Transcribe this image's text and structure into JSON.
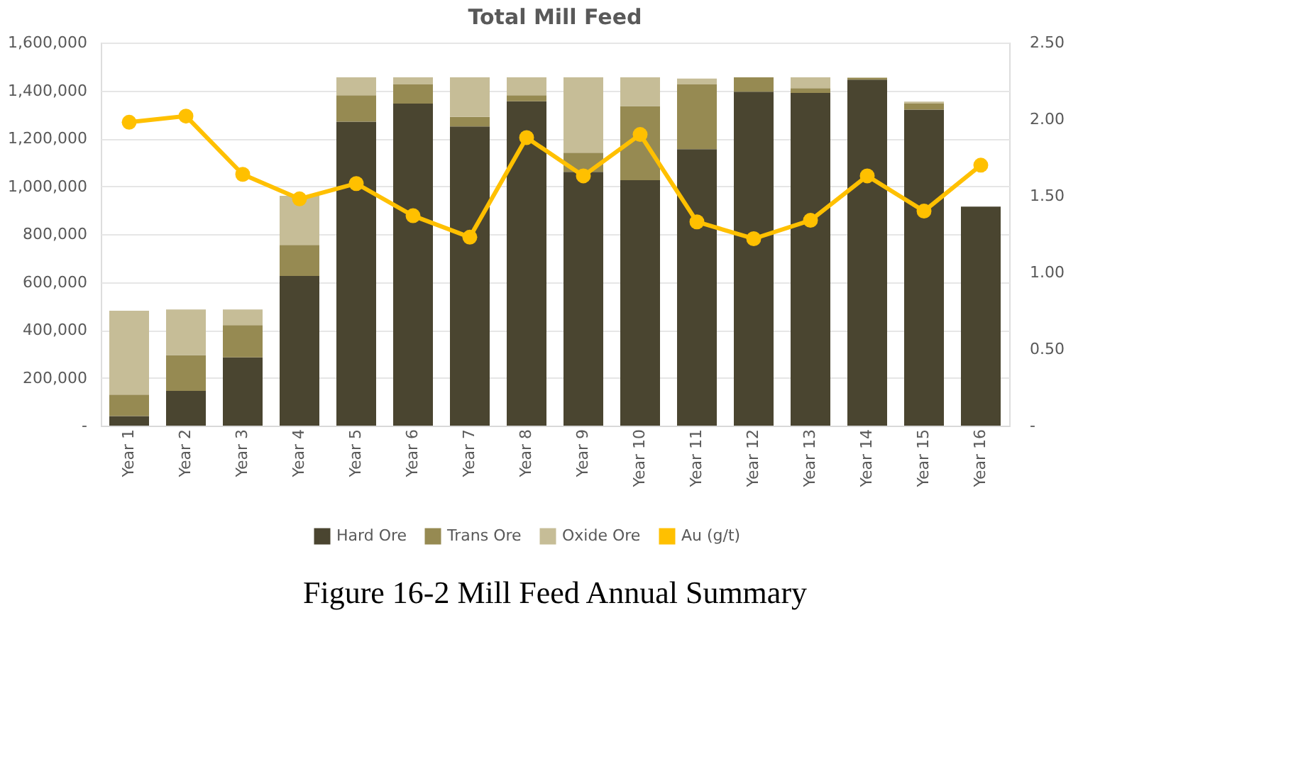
{
  "chart_data": {
    "type": "bar",
    "title": "Total Mill Feed",
    "stacked": true,
    "grid": "y",
    "legend": "bottom",
    "categories": [
      "Year 1",
      "Year 2",
      "Year 3",
      "Year 4",
      "Year 5",
      "Year 6",
      "Year 7",
      "Year 8",
      "Year 9",
      "Year 10",
      "Year 11",
      "Year 12",
      "Year 13",
      "Year 14",
      "Year 15",
      "Year 16"
    ],
    "series": [
      {
        "name": "Hard Ore",
        "color": "#4a4530",
        "values": [
          40000,
          145000,
          285000,
          625000,
          1270000,
          1345000,
          1250000,
          1355000,
          1060000,
          1025000,
          1155000,
          1395000,
          1390000,
          1445000,
          1320000,
          915000
        ]
      },
      {
        "name": "Trans Ore",
        "color": "#968a52",
        "values": [
          90000,
          150000,
          135000,
          130000,
          110000,
          80000,
          40000,
          25000,
          80000,
          310000,
          270000,
          60000,
          20000,
          8000,
          25000,
          0
        ]
      },
      {
        "name": "Oxide Ore",
        "color": "#c6bd97",
        "values": [
          350000,
          190000,
          65000,
          205000,
          75000,
          30000,
          165000,
          75000,
          315000,
          120000,
          25000,
          0,
          45000,
          0,
          8000,
          0
        ]
      },
      {
        "name": "Au (g/t)",
        "color": "#ffc000",
        "type": "line",
        "axis": "y2",
        "marker": "circle",
        "values": [
          1.98,
          2.02,
          1.64,
          1.48,
          1.58,
          1.37,
          1.23,
          1.88,
          1.63,
          1.9,
          1.33,
          1.22,
          1.34,
          1.63,
          1.4,
          1.7
        ]
      }
    ],
    "ylim": [
      0,
      1600000
    ],
    "yticks": [
      {
        "value": 0,
        "label": "-"
      },
      {
        "value": 200000,
        "label": "200,000"
      },
      {
        "value": 400000,
        "label": "400,000"
      },
      {
        "value": 600000,
        "label": "600,000"
      },
      {
        "value": 800000,
        "label": "800,000"
      },
      {
        "value": 1000000,
        "label": "1,000,000"
      },
      {
        "value": 1200000,
        "label": "1,200,000"
      },
      {
        "value": 1400000,
        "label": "1,400,000"
      },
      {
        "value": 1600000,
        "label": "1,600,000"
      }
    ],
    "y2lim": [
      0,
      2.5
    ],
    "y2ticks": [
      {
        "value": 0,
        "label": "-"
      },
      {
        "value": 0.5,
        "label": "0.50"
      },
      {
        "value": 1.0,
        "label": "1.00"
      },
      {
        "value": 1.5,
        "label": "1.50"
      },
      {
        "value": 2.0,
        "label": "2.00"
      },
      {
        "value": 2.5,
        "label": "2.50"
      }
    ],
    "annotations": [
      "Figure 16-2 Mill Feed Annual Summary"
    ]
  }
}
